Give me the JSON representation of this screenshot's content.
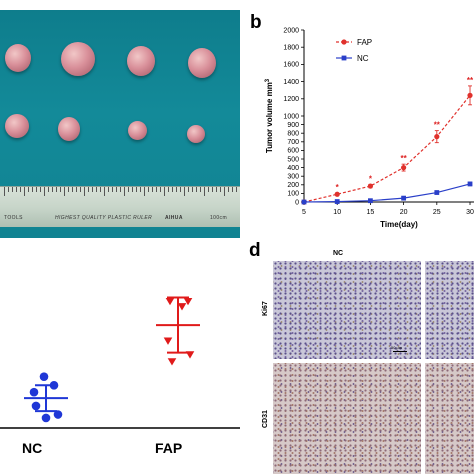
{
  "panel_letters": {
    "b": "b",
    "d": "d"
  },
  "photo": {
    "ruler_text_left": "TOOLS",
    "ruler_text_mid": "HIGHEST QUALITY PLASTIC RULER",
    "ruler_text_brand": "AIHUA",
    "ruler_text_right": "100cm"
  },
  "chart_data": [
    {
      "type": "line",
      "title": "",
      "xlabel": "Time(day)",
      "ylabel": "Tumor volume mm",
      "ylabel_superscript": "3",
      "x": [
        5,
        10,
        15,
        20,
        25,
        30
      ],
      "x_ticks": [
        "5",
        "10",
        "15",
        "20",
        "25",
        "30"
      ],
      "y_ticks": [
        "0",
        "100",
        "200",
        "300",
        "400",
        "500",
        "600",
        "700",
        "800",
        "900",
        "1000",
        "1200",
        "1400",
        "1600",
        "1800",
        "2000"
      ],
      "ylim": [
        0,
        2000
      ],
      "legend_position": "top-left",
      "series": [
        {
          "name": "FAP",
          "color": "#e0312c",
          "values": [
            0,
            90,
            185,
            400,
            760,
            1240
          ],
          "errors": [
            0,
            12,
            20,
            40,
            70,
            110
          ],
          "significance": [
            "",
            "*",
            "*",
            "**",
            "**",
            "**"
          ]
        },
        {
          "name": "NC",
          "color": "#2a3fc9",
          "values": [
            0,
            5,
            15,
            45,
            110,
            210
          ],
          "errors": [
            0,
            3,
            5,
            8,
            12,
            20
          ]
        }
      ]
    },
    {
      "type": "scatter",
      "title": "",
      "categories": [
        "NC",
        "FAP"
      ],
      "series": [
        {
          "name": "NC",
          "color": "#1f37d6",
          "points_y": [
            0.86,
            0.93,
            0.91,
            0.78,
            0.74,
            0.69
          ],
          "mean": 0.815,
          "sd": 0.075
        },
        {
          "name": "FAP",
          "color": "#e01a1a",
          "points_y": [
            0.25,
            0.28,
            0.25,
            0.48,
            0.56,
            0.6
          ],
          "mean": 0.39,
          "sd": 0.16
        }
      ]
    }
  ],
  "ihc": {
    "col_label_nc": "NC",
    "row_label_ki67": "Ki67",
    "row_label_cd31": "CD31",
    "scale_bar_text": "50 μm"
  },
  "colors": {
    "photo_bg": "#108392",
    "fap": "#e0312c",
    "nc": "#2a3fc9"
  }
}
